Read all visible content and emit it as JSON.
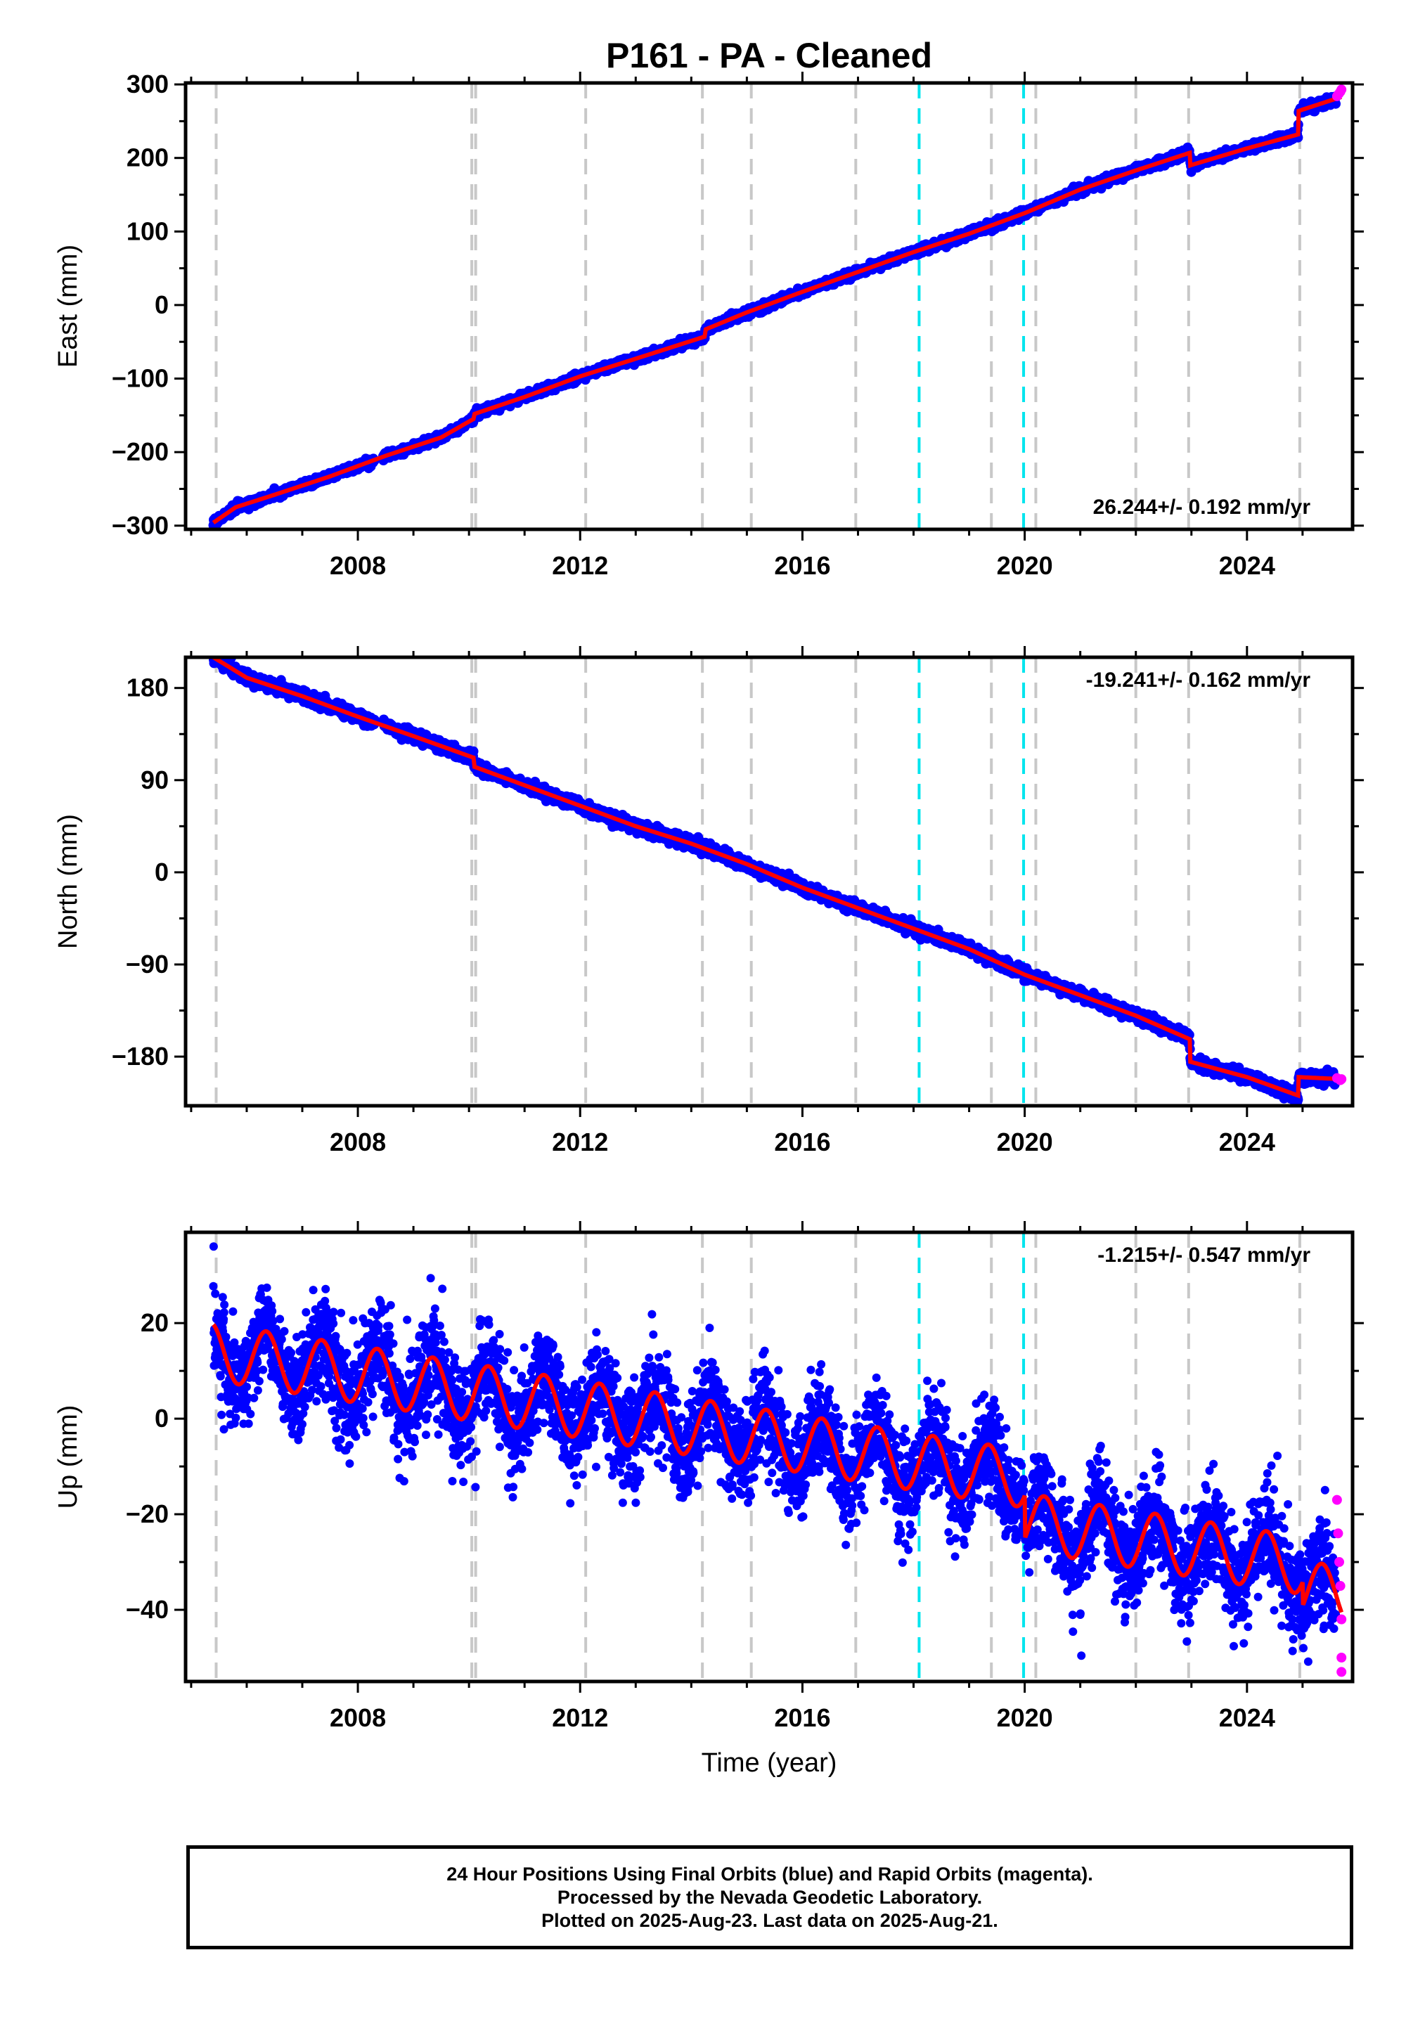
{
  "title": "P161  - PA - Cleaned",
  "xlabel": "Time (year)",
  "footer": {
    "line1": "24 Hour Positions Using Final Orbits (blue) and Rapid Orbits (magenta).",
    "line2": "Processed by the Nevada Geodetic Laboratory.",
    "line3": "Plotted on 2025-Aug-23. Last data on 2025-Aug-21."
  },
  "colors": {
    "final_orbits": "#0000ff",
    "rapid_orbits": "#ff00ff",
    "model": "#ff0000",
    "antenna_change": "#c8c8c8",
    "earthquake": "#00e5ee"
  },
  "chart_data": [
    {
      "type": "scatter",
      "panel": "east",
      "ylabel": "East (mm)",
      "xlim": [
        2004.9,
        2025.9
      ],
      "ylim": [
        -305,
        302
      ],
      "xticks": [
        2008,
        2012,
        2016,
        2020,
        2024
      ],
      "yticks": [
        300,
        200,
        100,
        0,
        -100,
        -200,
        -300
      ],
      "ytick_labels": [
        "300",
        "200",
        "100",
        "0",
        "−100",
        "−200",
        "−300"
      ],
      "rate_label": "26.244+/- 0.192 mm/yr",
      "rate_position": "bottom-right",
      "series": [
        {
          "role": "final",
          "x": [
            2005.4,
            2005.8,
            2006.5,
            2007.5,
            2008.5,
            2009.5,
            2010.1,
            2011.0,
            2012.0,
            2013.0,
            2014.0,
            2014.25,
            2015.0,
            2016.0,
            2017.0,
            2018.0,
            2019.0,
            2020.0,
            2021.0,
            2022.0,
            2022.95,
            2023.0,
            2024.0,
            2024.9,
            2025.0,
            2025.6
          ],
          "y": [
            -296,
            -275,
            -258,
            -233,
            -205,
            -180,
            -150,
            -125,
            -97,
            -73,
            -50,
            -33,
            -10,
            18,
            45,
            72,
            97,
            125,
            157,
            183,
            207,
            190,
            213,
            232,
            264,
            283
          ]
        },
        {
          "role": "rapid",
          "x": [
            2025.62,
            2025.65,
            2025.68,
            2025.7
          ],
          "y": [
            284,
            287,
            290,
            293
          ]
        },
        {
          "role": "model",
          "x": [
            2005.4,
            2005.8,
            2006.5,
            2007.5,
            2008.5,
            2009.5,
            2010.08,
            2010.1,
            2011.0,
            2012.0,
            2013.0,
            2014.24,
            2014.26,
            2015.0,
            2016.0,
            2017.0,
            2018.0,
            2019.0,
            2020.0,
            2021.0,
            2022.0,
            2022.97,
            2022.98,
            2024.0,
            2024.92,
            2024.93,
            2025.7
          ],
          "y": [
            -296,
            -275,
            -258,
            -233,
            -205,
            -180,
            -155,
            -148,
            -125,
            -97,
            -73,
            -43,
            -33,
            -10,
            18,
            45,
            72,
            97,
            125,
            157,
            183,
            207,
            190,
            213,
            232,
            264,
            283
          ]
        }
      ]
    },
    {
      "type": "scatter",
      "panel": "north",
      "ylabel": "North (mm)",
      "xlim": [
        2004.9,
        2025.9
      ],
      "ylim": [
        -228,
        210
      ],
      "xticks": [
        2008,
        2012,
        2016,
        2020,
        2024
      ],
      "yticks": [
        180,
        90,
        0,
        -90,
        -180
      ],
      "ytick_labels": [
        "180",
        "90",
        "0",
        "−90",
        "−180"
      ],
      "rate_label": "-19.241+/- 0.162 mm/yr",
      "rate_position": "top-right",
      "series": [
        {
          "role": "final",
          "x": [
            2005.4,
            2006.0,
            2007.0,
            2008.0,
            2009.0,
            2010.0,
            2010.1,
            2011.0,
            2012.0,
            2013.0,
            2014.0,
            2015.0,
            2016.0,
            2017.0,
            2018.0,
            2019.0,
            2020.0,
            2021.0,
            2022.0,
            2022.95,
            2023.0,
            2024.0,
            2024.9,
            2025.0,
            2025.6
          ],
          "y": [
            210,
            190,
            172,
            152,
            133,
            113,
            103,
            85,
            65,
            45,
            28,
            8,
            -15,
            -35,
            -55,
            -75,
            -100,
            -120,
            -140,
            -160,
            -185,
            -200,
            -218,
            -200,
            -202
          ]
        },
        {
          "role": "rapid",
          "x": [
            2025.62,
            2025.68,
            2025.7
          ],
          "y": [
            -201,
            -203,
            -202
          ]
        },
        {
          "role": "model",
          "x": [
            2005.4,
            2006.0,
            2007.0,
            2008.0,
            2009.0,
            2010.08,
            2010.1,
            2011.0,
            2012.0,
            2013.0,
            2014.0,
            2015.0,
            2016.0,
            2017.0,
            2018.0,
            2019.0,
            2020.0,
            2021.0,
            2022.0,
            2022.97,
            2022.98,
            2024.0,
            2024.92,
            2024.93,
            2025.7
          ],
          "y": [
            210,
            190,
            172,
            152,
            133,
            112,
            103,
            85,
            65,
            45,
            28,
            8,
            -15,
            -35,
            -55,
            -75,
            -100,
            -120,
            -140,
            -163,
            -185,
            -200,
            -218,
            -200,
            -202
          ]
        }
      ]
    },
    {
      "type": "scatter",
      "panel": "up",
      "ylabel": "Up (mm)",
      "xlim": [
        2004.9,
        2025.9
      ],
      "ylim": [
        -55,
        39
      ],
      "xticks": [
        2008,
        2012,
        2016,
        2020,
        2024
      ],
      "yticks": [
        20,
        0,
        -20,
        -40
      ],
      "ytick_labels": [
        "20",
        "0",
        "−20",
        "−40"
      ],
      "rate_label": "-1.215+/- 0.547 mm/yr",
      "rate_position": "top-right",
      "series": [
        {
          "role": "final",
          "x": [
            2005.4,
            2006.0,
            2007.0,
            2008.0,
            2009.0,
            2010.0,
            2011.0,
            2012.0,
            2013.0,
            2014.0,
            2015.0,
            2016.0,
            2017.0,
            2018.0,
            2019.0,
            2020.0,
            2021.0,
            2022.0,
            2023.0,
            2024.0,
            2025.0,
            2025.6
          ],
          "y": [
            13,
            12,
            11,
            10,
            9,
            8,
            7,
            7,
            6,
            5,
            1,
            -1,
            -5,
            -7,
            -8,
            -14,
            -12,
            -14,
            -19,
            -21,
            -29,
            -30
          ]
        },
        {
          "role": "rapid",
          "x": [
            2025.62,
            2025.64,
            2025.66,
            2025.68,
            2025.7,
            2025.7,
            2025.7
          ],
          "y": [
            -17,
            -24,
            -30,
            -35,
            -42,
            -50,
            -53
          ]
        },
        {
          "role": "model",
          "x": [
            2005.4,
            2025.7
          ],
          "y": [
            14.0,
            -37.0
          ],
          "annual_amplitude": 6,
          "annual_phase_year_fraction": 0.3,
          "offsets": [
            {
              "x": 2020.0,
              "y_jump": -9
            },
            {
              "x": 2025.0,
              "y_jump": -5
            }
          ]
        }
      ]
    }
  ],
  "event_lines": {
    "antenna_change_years": [
      2005.45,
      2010.05,
      2010.12,
      2012.1,
      2014.2,
      2015.08,
      2016.96,
      2019.4,
      2020.2,
      2022.0,
      2022.95,
      2024.95
    ],
    "earthquake_years": [
      2018.1,
      2019.98
    ]
  }
}
